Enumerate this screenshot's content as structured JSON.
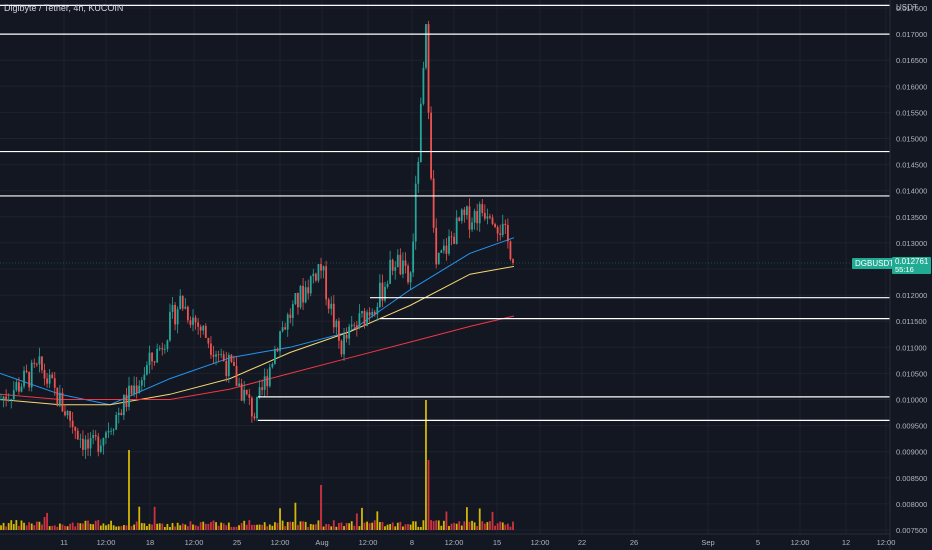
{
  "header": {
    "symbol_title": "Digibyte / Tether, 4h, KUCOIN",
    "currency": "USDT"
  },
  "price_scale": {
    "labels": [
      "0.017500",
      "0.017000",
      "0.016500",
      "0.016000",
      "0.015500",
      "0.015000",
      "0.014500",
      "0.014000",
      "0.013500",
      "0.013000",
      "0.012500",
      "0.012000",
      "0.011500",
      "0.011000",
      "0.010500",
      "0.010000",
      "0.009500",
      "0.009000",
      "0.008500",
      "0.008000",
      "0.007500"
    ],
    "ticker_tag": "DGBUSDT",
    "last_price": "0.012761",
    "countdown": "55:16"
  },
  "time_scale": {
    "labels": [
      "11",
      "12:00",
      "18",
      "12:00",
      "25",
      "12:00",
      "Aug",
      "12:00",
      "8",
      "12:00",
      "15",
      "12:00",
      "22",
      "26",
      "Sep",
      "5",
      "12:00",
      "12",
      "12:00"
    ]
  },
  "colors": {
    "background": "#131722",
    "up_candle": "#26a69a",
    "down_candle": "#ef5350",
    "horizontal_levels": "#ffffff",
    "ma_fast": "#2196f3",
    "ma_mid": "#f7d774",
    "ma_slow": "#f23645",
    "volume_up": "#f5d300",
    "volume_down": "#f23645",
    "last_price": "#22ab94"
  },
  "chart_data": {
    "type": "candlestick",
    "symbol": "DGBUSDT",
    "timeframe": "4h",
    "exchange": "KUCOIN",
    "y_range": [
      0.0074,
      0.0176
    ],
    "horizontal_levels": [
      0.01755,
      0.017,
      0.01475,
      0.0139,
      0.01195,
      0.01155,
      0.01005,
      0.0096
    ],
    "last_price": 0.012761,
    "ohlc_keypoints": [
      {
        "date": "Jul 8",
        "price": 0.01
      },
      {
        "date": "Jul 10",
        "price": 0.0106
      },
      {
        "date": "Jul 12",
        "price": 0.009
      },
      {
        "date": "Jul 14",
        "price": 0.0098
      },
      {
        "date": "Jul 17",
        "price": 0.011
      },
      {
        "date": "Jul 18",
        "price": 0.0119
      },
      {
        "date": "Jul 22",
        "price": 0.0106
      },
      {
        "date": "Jul 25",
        "price": 0.0097
      },
      {
        "date": "Jul 28",
        "price": 0.0113
      },
      {
        "date": "Jul 30",
        "price": 0.0126
      },
      {
        "date": "Aug 2",
        "price": 0.011
      },
      {
        "date": "Aug 4",
        "price": 0.012
      },
      {
        "date": "Aug 5",
        "price": 0.0127
      },
      {
        "date": "Aug 8",
        "price": 0.0122
      },
      {
        "date": "Aug 9",
        "price": 0.017
      },
      {
        "date": "Aug 10",
        "price": 0.0125
      },
      {
        "date": "Aug 12",
        "price": 0.0134
      },
      {
        "date": "Aug 15",
        "price": 0.0137
      },
      {
        "date": "Aug 16",
        "price": 0.01276
      }
    ],
    "moving_averages": [
      {
        "color": "#2196f3",
        "points": [
          0.0105,
          0.0101,
          0.0099,
          0.0104,
          0.0108,
          0.011,
          0.0113,
          0.0121,
          0.0128,
          0.0131
        ]
      },
      {
        "color": "#f7d774",
        "points": [
          0.01,
          0.0099,
          0.0099,
          0.0101,
          0.0104,
          0.0109,
          0.0113,
          0.0118,
          0.0124,
          0.01255
        ]
      },
      {
        "color": "#f23645",
        "points": [
          0.0101,
          0.01,
          0.01,
          0.01,
          0.0102,
          0.0105,
          0.0108,
          0.0111,
          0.0114,
          0.0116
        ]
      }
    ],
    "grid": true
  }
}
